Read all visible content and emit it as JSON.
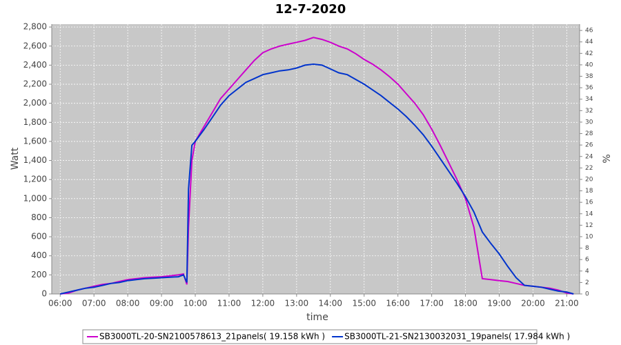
{
  "chart_data": {
    "type": "line",
    "title": "12-7-2020",
    "x_label": "time",
    "y_label": "Watt",
    "y2_label": "%",
    "x": [
      6,
      6.25,
      6.5,
      6.75,
      7,
      7.25,
      7.5,
      7.75,
      8,
      8.25,
      8.5,
      8.75,
      9,
      9.25,
      9.5,
      9.65,
      9.75,
      9.8,
      9.9,
      10,
      10.25,
      10.5,
      10.75,
      11,
      11.25,
      11.5,
      11.75,
      12,
      12.25,
      12.5,
      12.75,
      13,
      13.25,
      13.5,
      13.75,
      14,
      14.25,
      14.5,
      14.75,
      15,
      15.25,
      15.5,
      15.75,
      16,
      16.25,
      16.5,
      16.75,
      17,
      17.25,
      17.5,
      17.75,
      18,
      18.25,
      18.5,
      18.75,
      19,
      19.25,
      19.5,
      19.75,
      20,
      20.25,
      20.5,
      20.75,
      21,
      21.2
    ],
    "series": [
      {
        "name": "SB3000TL-20-SN2100578613_21panels( 19.158 kWh )",
        "color": "#cc00cc",
        "values": [
          0,
          10,
          40,
          60,
          80,
          100,
          110,
          130,
          150,
          160,
          170,
          175,
          180,
          190,
          200,
          210,
          100,
          700,
          1400,
          1600,
          1750,
          1900,
          2050,
          2150,
          2250,
          2350,
          2450,
          2530,
          2570,
          2600,
          2620,
          2640,
          2660,
          2690,
          2670,
          2640,
          2600,
          2570,
          2520,
          2460,
          2410,
          2350,
          2280,
          2200,
          2100,
          2000,
          1880,
          1730,
          1560,
          1380,
          1200,
          1000,
          700,
          160,
          150,
          140,
          130,
          110,
          90,
          80,
          70,
          60,
          40,
          10,
          0
        ]
      },
      {
        "name": "SB3000TL-21-SN2130032031_19panels( 17.984 kWh )",
        "color": "#0033cc",
        "values": [
          0,
          20,
          40,
          60,
          70,
          90,
          110,
          120,
          140,
          150,
          160,
          165,
          170,
          175,
          180,
          200,
          120,
          1100,
          1560,
          1600,
          1720,
          1850,
          1980,
          2080,
          2150,
          2220,
          2260,
          2300,
          2320,
          2340,
          2350,
          2370,
          2400,
          2410,
          2400,
          2360,
          2320,
          2300,
          2250,
          2200,
          2140,
          2080,
          2010,
          1940,
          1860,
          1770,
          1670,
          1550,
          1420,
          1290,
          1160,
          1020,
          860,
          650,
          530,
          420,
          290,
          170,
          90,
          80,
          70,
          50,
          30,
          20,
          0
        ]
      }
    ],
    "xlim": [
      5.75,
      21.38
    ],
    "xticks": [
      {
        "value": 6,
        "label": "06:00"
      },
      {
        "value": 7,
        "label": "07:00"
      },
      {
        "value": 8,
        "label": "08:00"
      },
      {
        "value": 9,
        "label": "09:00"
      },
      {
        "value": 10,
        "label": "10:00"
      },
      {
        "value": 11,
        "label": "11:00"
      },
      {
        "value": 12,
        "label": "12:00"
      },
      {
        "value": 13,
        "label": "13:00"
      },
      {
        "value": 14,
        "label": "14:00"
      },
      {
        "value": 15,
        "label": "15:00"
      },
      {
        "value": 16,
        "label": "16:00"
      },
      {
        "value": 17,
        "label": "17:00"
      },
      {
        "value": 18,
        "label": "18:00"
      },
      {
        "value": 19,
        "label": "19:00"
      },
      {
        "value": 20,
        "label": "20:00"
      },
      {
        "value": 21,
        "label": "21:00"
      }
    ],
    "ylim": [
      0,
      2830
    ],
    "yticks": [
      0,
      200,
      400,
      600,
      800,
      {
        "value": 1000,
        "label": "1,000"
      },
      {
        "value": 1200,
        "label": "1,200"
      },
      {
        "value": 1400,
        "label": "1,400"
      },
      {
        "value": 1600,
        "label": "1,600"
      },
      {
        "value": 1800,
        "label": "1,800"
      },
      {
        "value": 2000,
        "label": "2,000"
      },
      {
        "value": 2200,
        "label": "2,200"
      },
      {
        "value": 2400,
        "label": "2,400"
      },
      {
        "value": 2600,
        "label": "2,600"
      },
      {
        "value": 2800,
        "label": "2,800"
      }
    ],
    "y2lim": [
      0,
      47.1
    ],
    "y2ticks": [
      0,
      2,
      4,
      6,
      8,
      10,
      12,
      14,
      16,
      18,
      20,
      22,
      24,
      26,
      28,
      30,
      32,
      34,
      36,
      38,
      40,
      42,
      44,
      46
    ],
    "grid": true,
    "legend": "bottom"
  }
}
